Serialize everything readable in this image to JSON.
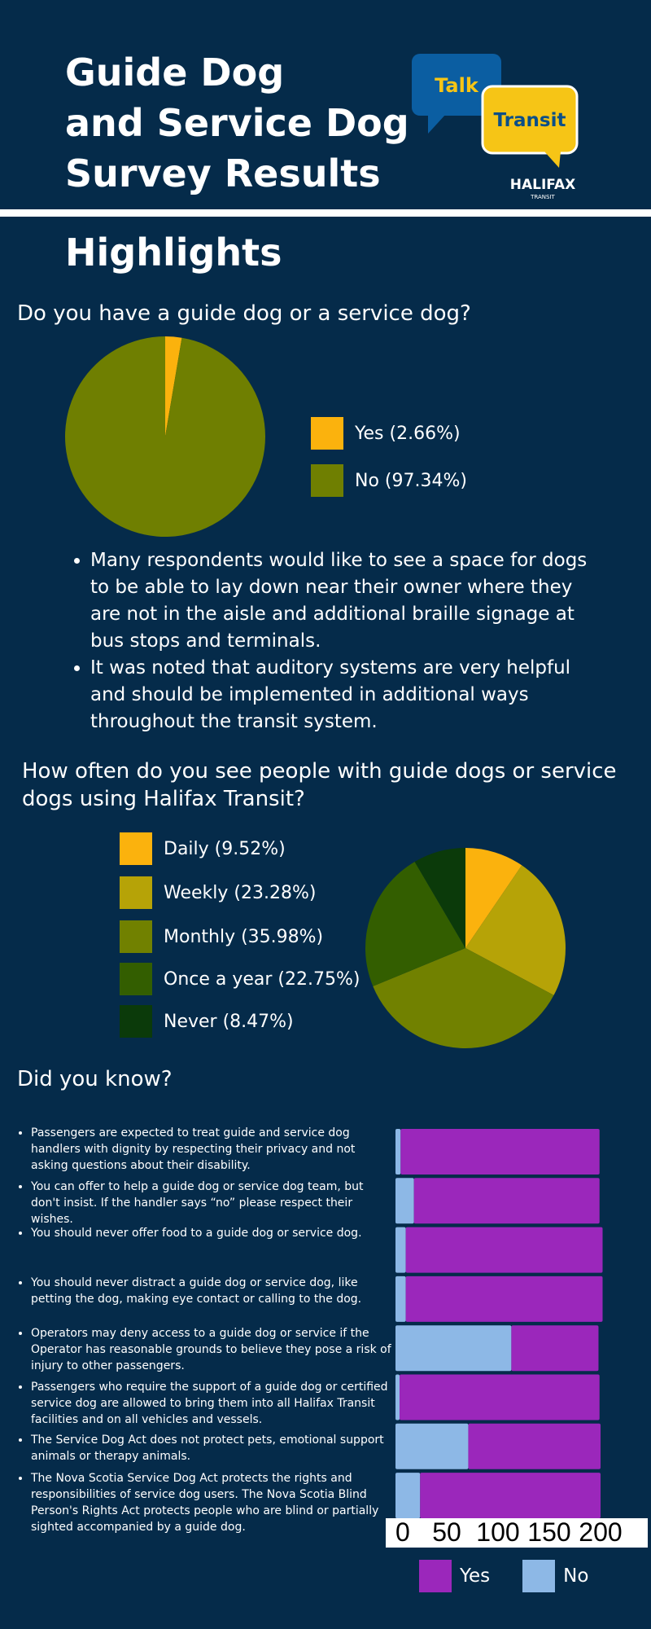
{
  "header": {
    "title_lines": [
      "Guide Dog",
      "and Service Dog",
      "Survey Results"
    ],
    "logo": {
      "talk": "Talk",
      "transit": "Transit",
      "brand": "HALIFAX",
      "brand_sub": "TRANSIT"
    }
  },
  "highlights_heading": "Highlights",
  "section1": {
    "question": "Do you have a guide dog or a service dog?",
    "bullets": [
      "Many respondents would like to see a space for dogs to be able to lay down near their owner where they are not in the aisle and additional braille signage at bus stops and terminals.",
      "It was noted that auditory systems are very helpful and should be implemented in additional ways throughout the transit system."
    ]
  },
  "section2": {
    "question": "How often do you see people with guide dogs or service dogs using Halifax Transit?"
  },
  "section3": {
    "heading": "Did you know?",
    "facts": [
      "Passengers are expected to treat guide and service dog handlers with dignity by respecting their privacy and not asking questions about their disability.",
      "You can offer to help a guide dog or service dog team, but don't insist. If the handler says “no” please respect their wishes.",
      "You should never offer food to a guide dog or service dog.",
      "You should never distract a guide dog or service dog, like petting the dog, making eye contact or calling to the dog.",
      "Operators may deny access to a guide dog or service if the Operator has reasonable grounds to believe they pose a risk of injury to other passengers.",
      "Passengers who require the support of a guide dog or certified service dog are allowed to bring them into all Halifax Transit facilities and on all vehicles and vessels.",
      "The Service Dog Act does not protect pets, emotional support animals or therapy animals.",
      "The Nova Scotia Service Dog Act protects the rights and responsibilities of service dog users. The Nova Scotia Blind Person's Rights Act protects people who are blind or partially sighted accompanied by a guide dog."
    ]
  },
  "colors": {
    "background": "#052b4a",
    "yes_purple": "#9b27bb",
    "no_blue": "#8db8e6"
  },
  "chart_data": [
    {
      "type": "pie",
      "labels": [
        "Yes (2.66%)",
        "No (97.34%)"
      ],
      "values": [
        2.66,
        97.34
      ],
      "colors": [
        "#fbb20d",
        "#6f7f01"
      ],
      "legend": "right"
    },
    {
      "type": "pie",
      "labels": [
        "Daily (9.52%)",
        "Weekly (23.28%)",
        "Monthly (35.98%)",
        "Once a year (22.75%)",
        "Never (8.47%)"
      ],
      "values": [
        9.52,
        23.28,
        35.98,
        22.75,
        8.47
      ],
      "colors": [
        "#fbb20d",
        "#b6a307",
        "#718100",
        "#335e00",
        "#0b3a0a"
      ],
      "legend": "left"
    },
    {
      "type": "bar",
      "orientation": "horizontal",
      "stacked": true,
      "series": [
        {
          "name": "Yes",
          "values": [
            194,
            181,
            192,
            192,
            85,
            195,
            129,
            176
          ],
          "color": "#9b27bb"
        },
        {
          "name": "No",
          "values": [
            5,
            18,
            10,
            10,
            113,
            4,
            71,
            24
          ],
          "color": "#8db8e6"
        }
      ],
      "xticks": [
        "0",
        "50",
        "100",
        "150",
        "200"
      ],
      "xlim": [
        0,
        200
      ],
      "legend": "bottom"
    }
  ]
}
